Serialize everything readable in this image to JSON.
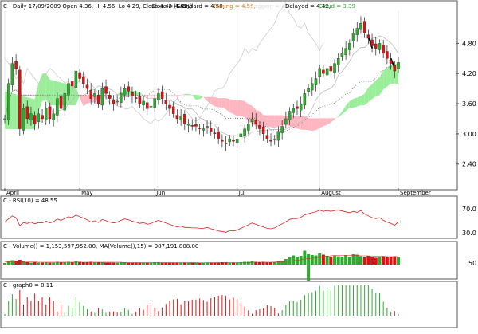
{
  "colors": {
    "up": "#2eaa2e",
    "down": "#e01010",
    "cloud_bull": "#9aee9a",
    "cloud_bear": "#ffb6c1",
    "tenkan": "#bbbbbb",
    "kijun": "#999999",
    "rsi": "#dd2222",
    "frame": "#555555",
    "pane_sep": "#888888"
  },
  "price_panel": {
    "header": {
      "symbol_info": "C - Daily 17/09/2009 Open 4.36, Hi 4.56, Lo 4.29, Close 4.42 (5.2%)",
      "close": "Close = 4.42,",
      "standard": "Standard = 4.58,",
      "turning": "Turning = 4.55,",
      "lagging": "Lagging = 4.42,",
      "delayed": "Delayed = 4.42,",
      "cloud": "Cloud = 3.39"
    },
    "y_ticks": [
      "4.80",
      "4.20",
      "3.60",
      "3.00",
      "2.40"
    ],
    "month_labels": [
      "April",
      "May",
      "Jun",
      "Jul",
      "August",
      "September"
    ]
  },
  "rsi_panel": {
    "header": "C - RSI(10) = 48.55",
    "y_ticks": [
      "70.0",
      "30.0"
    ]
  },
  "volume_panel": {
    "header": "C - Volume() = 1,153,597,952.00,  MA(Volume(),15) = 987,191,808.00",
    "y_ticks": [
      "50"
    ]
  },
  "graph_panel": {
    "header": "C - graph0 = 0.11"
  },
  "chart_data": {
    "type": "candlestick",
    "title": "C - Daily 17/09/2009",
    "price_range": [
      1.92,
      5.44
    ],
    "months": [
      {
        "label": "April",
        "start": 0
      },
      {
        "label": "May",
        "start": 20
      },
      {
        "label": "Jun",
        "start": 40
      },
      {
        "label": "Jul",
        "start": 62
      },
      {
        "label": "August",
        "start": 84
      },
      {
        "label": "September",
        "start": 105
      }
    ],
    "close": [
      3.3,
      4.0,
      4.4,
      4.3,
      3.1,
      3.5,
      3.3,
      3.4,
      3.2,
      3.4,
      3.3,
      3.5,
      3.3,
      3.4,
      3.7,
      3.5,
      3.8,
      4.0,
      3.95,
      4.25,
      4.1,
      4.0,
      3.9,
      3.7,
      3.8,
      3.6,
      3.9,
      3.8,
      3.7,
      3.6,
      3.65,
      3.8,
      3.9,
      3.85,
      3.75,
      3.7,
      3.6,
      3.65,
      3.5,
      3.55,
      3.7,
      3.8,
      3.7,
      3.6,
      3.5,
      3.4,
      3.3,
      3.35,
      3.2,
      3.2,
      3.15,
      3.15,
      3.1,
      3.1,
      3.15,
      3.05,
      3.0,
      2.9,
      2.85,
      2.8,
      2.9,
      2.85,
      2.9,
      3.0,
      3.1,
      3.2,
      3.3,
      3.2,
      3.1,
      3.0,
      2.9,
      2.85,
      2.9,
      3.05,
      3.15,
      3.3,
      3.45,
      3.5,
      3.5,
      3.6,
      3.8,
      3.9,
      4.0,
      4.1,
      4.3,
      4.2,
      4.3,
      4.25,
      4.4,
      4.5,
      4.6,
      4.7,
      4.8,
      5.0,
      5.1,
      5.2,
      5.0,
      4.9,
      4.75,
      4.7,
      4.8,
      4.6,
      4.5,
      4.4,
      4.25,
      4.42
    ],
    "rsi": [
      48,
      55,
      62,
      58,
      40,
      47,
      45,
      48,
      44,
      47,
      46,
      50,
      46,
      49,
      55,
      52,
      56,
      60,
      58,
      64,
      60,
      57,
      53,
      48,
      51,
      47,
      54,
      51,
      48,
      46,
      48,
      52,
      55,
      53,
      50,
      48,
      45,
      47,
      43,
      45,
      49,
      52,
      49,
      46,
      43,
      40,
      37,
      39,
      36,
      36,
      35,
      35,
      34,
      34,
      36,
      33,
      31,
      28,
      27,
      25,
      29,
      28,
      30,
      34,
      38,
      42,
      46,
      43,
      40,
      37,
      34,
      33,
      35,
      40,
      44,
      49,
      54,
      56,
      56,
      59,
      64,
      67,
      69,
      71,
      75,
      72,
      74,
      72,
      74,
      75,
      73,
      71,
      69,
      72,
      70,
      74,
      66,
      62,
      58,
      56,
      58,
      52,
      48,
      45,
      41,
      48.55
    ],
    "volume": [
      0.4,
      0.9,
      1.1,
      1.0,
      1.2,
      0.8,
      0.6,
      0.5,
      0.6,
      0.5,
      0.5,
      0.6,
      0.5,
      0.5,
      0.7,
      0.6,
      0.6,
      0.7,
      0.6,
      0.8,
      0.7,
      0.6,
      0.6,
      0.7,
      0.6,
      0.6,
      0.6,
      0.5,
      0.5,
      0.5,
      0.5,
      0.6,
      0.6,
      0.5,
      0.5,
      0.5,
      0.5,
      0.5,
      0.5,
      0.5,
      0.6,
      0.6,
      0.5,
      0.5,
      0.5,
      0.5,
      0.5,
      0.5,
      0.5,
      0.5,
      0.5,
      0.5,
      0.4,
      0.4,
      0.5,
      0.5,
      0.5,
      0.5,
      0.6,
      0.6,
      0.5,
      0.5,
      0.5,
      0.6,
      0.7,
      0.7,
      0.8,
      0.7,
      0.6,
      0.7,
      0.6,
      0.6,
      0.7,
      0.8,
      0.9,
      1.4,
      1.8,
      2.3,
      2.0,
      2.2,
      3.5,
      2.6,
      2.4,
      2.3,
      2.8,
      2.5,
      2.2,
      2.0,
      2.3,
      2.1,
      2.0,
      2.4,
      1.9,
      2.6,
      2.5,
      2.1,
      1.8,
      2.2,
      2.0,
      1.7,
      1.9,
      2.1,
      1.8,
      2.0,
      2.1,
      1.9
    ],
    "volume_spike_down": 81,
    "volume_ma": [
      0.7,
      0.7,
      0.8,
      0.8,
      0.8,
      0.7,
      0.7,
      0.7,
      0.7,
      0.6,
      0.6,
      0.6,
      0.6,
      0.6,
      0.6,
      0.6,
      0.6,
      0.6,
      0.6,
      0.6,
      0.6,
      0.6,
      0.6,
      0.6,
      0.6,
      0.6,
      0.6,
      0.6,
      0.6,
      0.6,
      0.6,
      0.6,
      0.5,
      0.5,
      0.5,
      0.5,
      0.5,
      0.5,
      0.5,
      0.5,
      0.5,
      0.5,
      0.5,
      0.5,
      0.5,
      0.5,
      0.5,
      0.5,
      0.5,
      0.5,
      0.5,
      0.5,
      0.5,
      0.5,
      0.5,
      0.5,
      0.5,
      0.5,
      0.5,
      0.5,
      0.5,
      0.5,
      0.5,
      0.5,
      0.5,
      0.5,
      0.6,
      0.6,
      0.6,
      0.6,
      0.6,
      0.6,
      0.6,
      0.7,
      0.7,
      0.8,
      0.9,
      1.0,
      1.1,
      1.2,
      1.4,
      1.5,
      1.6,
      1.7,
      1.9,
      2.0,
      2.1,
      2.2,
      2.3,
      2.3,
      2.3,
      2.3,
      2.3,
      2.3,
      2.3,
      2.2,
      2.2,
      2.2,
      2.1,
      2.1,
      2.1,
      2.1,
      2.0,
      2.0,
      2.0,
      2.0
    ]
  }
}
